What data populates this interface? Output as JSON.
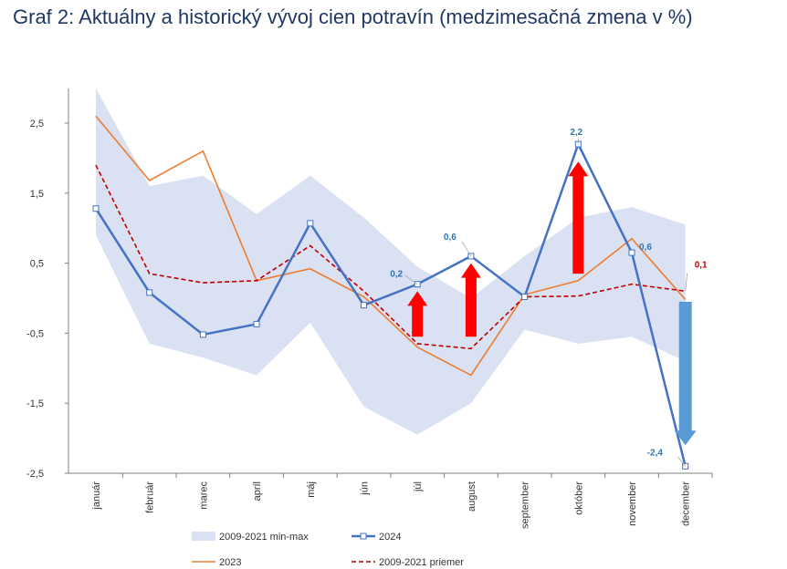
{
  "title": "Graf 2: Aktuálny a historický vývoj cien potravín (medzimesačná zmena v %)",
  "chart_data": {
    "type": "line",
    "categories": [
      "január",
      "február",
      "marec",
      "apríl",
      "máj",
      "jún",
      "júl",
      "august",
      "september",
      "október",
      "november",
      "december"
    ],
    "ylim": [
      -2.5,
      3.0
    ],
    "yticks": [
      -2.5,
      -1.5,
      -0.5,
      0.5,
      1.5,
      2.5
    ],
    "ytick_labels": [
      "-2,5",
      "-1,5",
      "-0,5",
      "0,5",
      "1,5",
      "2,5"
    ],
    "band": {
      "name": "2009-2021 min-max",
      "color": "#d9e1f2",
      "min": [
        0.9,
        -0.65,
        -0.85,
        -1.1,
        -0.35,
        -1.55,
        -1.95,
        -1.5,
        -0.45,
        -0.65,
        -0.55,
        -0.9
      ],
      "max": [
        3.0,
        1.6,
        1.75,
        1.2,
        1.75,
        1.15,
        0.45,
        0.0,
        0.6,
        1.15,
        1.3,
        1.05
      ]
    },
    "series": [
      {
        "name": "2024",
        "color": "#4472c4",
        "style": "solid-markers",
        "values": [
          1.28,
          0.08,
          -0.52,
          -0.37,
          1.07,
          -0.1,
          0.2,
          0.6,
          0.02,
          2.2,
          0.65,
          -2.4
        ]
      },
      {
        "name": "2023",
        "color": "#ed7d31",
        "style": "solid",
        "values": [
          2.6,
          1.68,
          2.1,
          0.25,
          0.42,
          0.02,
          -0.7,
          -1.1,
          0.05,
          0.25,
          0.85,
          -0.02
        ]
      },
      {
        "name": "2009-2021 priemer",
        "color": "#c00000",
        "style": "dashed",
        "values": [
          1.9,
          0.35,
          0.22,
          0.25,
          0.75,
          0.1,
          -0.65,
          -0.72,
          0.02,
          0.03,
          0.2,
          0.1
        ]
      }
    ],
    "annotations": [
      {
        "text": "0,2",
        "month": 6,
        "value": 0.2,
        "color": "#2e75b6"
      },
      {
        "text": "0,6",
        "month": 7,
        "value": 0.6,
        "color": "#2e75b6"
      },
      {
        "text": "2,2",
        "month": 9,
        "value": 2.2,
        "color": "#2e75b6"
      },
      {
        "text": "0,6",
        "month": 10,
        "value": 0.65,
        "color": "#2e75b6"
      },
      {
        "text": "0,1",
        "month": 11,
        "value": 0.1,
        "color": "#c00000"
      },
      {
        "text": "-2,4",
        "month": 11,
        "value": -2.4,
        "color": "#2e75b6"
      }
    ],
    "arrows": [
      {
        "direction": "up",
        "month": 6,
        "from": -0.55,
        "to": 0.1,
        "color": "#ff0000"
      },
      {
        "direction": "up",
        "month": 7,
        "from": -0.55,
        "to": 0.5,
        "color": "#ff0000"
      },
      {
        "direction": "up",
        "month": 9,
        "from": 0.35,
        "to": 1.95,
        "color": "#ff0000"
      },
      {
        "direction": "down",
        "month": 11,
        "from": -0.05,
        "to": -2.1,
        "color": "#5b9bd5"
      }
    ],
    "legend": {
      "position": "bottom",
      "entries": [
        "2009-2021 min-max",
        "2024",
        "2023",
        "2009-2021 priemer"
      ]
    }
  }
}
